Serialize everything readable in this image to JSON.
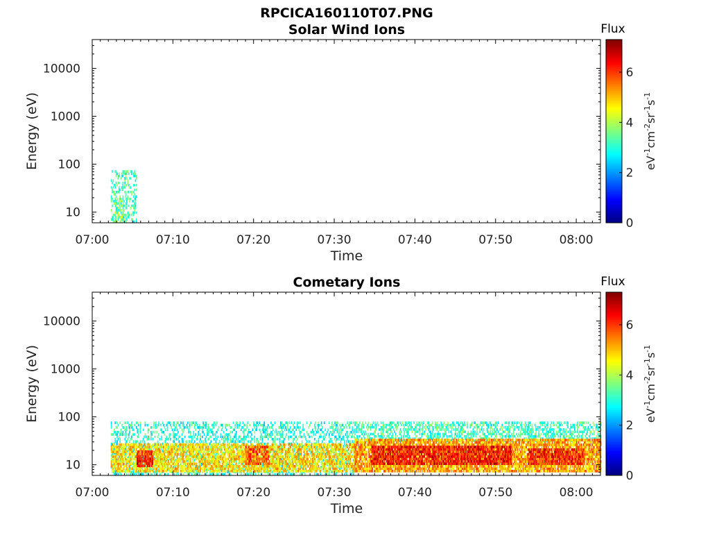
{
  "figure": {
    "title": "RPCICA160110T07.PNG"
  },
  "colormap": {
    "name": "jet",
    "stops": [
      "#00007f",
      "#0000ff",
      "#007fff",
      "#00ffff",
      "#7fff7f",
      "#ffff00",
      "#ff7f00",
      "#ff0000",
      "#7f0000"
    ]
  },
  "chart_data": [
    {
      "type": "heatmap",
      "title": "Solar Wind Ions",
      "xlabel": "Time",
      "ylabel": "Energy (eV)",
      "x_range_min": [
        0,
        63
      ],
      "x_start": "07:00",
      "x_ticks": [
        "07:00",
        "07:10",
        "07:20",
        "07:30",
        "07:40",
        "07:50",
        "08:00"
      ],
      "y_scale": "log",
      "y_range": [
        6,
        40000
      ],
      "y_ticks": [
        "10",
        "100",
        "1000",
        "10000"
      ],
      "colorbar": {
        "title": "Flux",
        "unit_label": "eV-1cm-2sr-1s-1",
        "range": [
          0,
          7.3
        ],
        "ticks": [
          "0",
          "2",
          "4",
          "6"
        ]
      },
      "blobs": [
        {
          "t0": 2.3,
          "t1": 5.5,
          "e_low": 6,
          "e_high": 75,
          "flux": 3.2,
          "density": 0.35
        },
        {
          "t0": 2.8,
          "t1": 4.2,
          "e_low": 6,
          "e_high": 20,
          "flux": 3.6,
          "density": 0.5
        }
      ]
    },
    {
      "type": "heatmap",
      "title": "Cometary Ions",
      "xlabel": "Time",
      "ylabel": "Energy (eV)",
      "x_range_min": [
        0,
        63
      ],
      "x_start": "07:00",
      "x_ticks": [
        "07:00",
        "07:10",
        "07:20",
        "07:30",
        "07:40",
        "07:50",
        "08:00"
      ],
      "y_scale": "log",
      "y_range": [
        6,
        40000
      ],
      "y_ticks": [
        "10",
        "100",
        "1000",
        "10000"
      ],
      "colorbar": {
        "title": "Flux",
        "unit_label": "eV-1cm-2sr-1s-1",
        "range": [
          0,
          7.3
        ],
        "ticks": [
          "0",
          "2",
          "4",
          "6"
        ]
      },
      "blobs": [
        {
          "t0": 2.3,
          "t1": 32.5,
          "e_low": 6,
          "e_high": 80,
          "flux": 3.0,
          "density": 0.35
        },
        {
          "t0": 2.3,
          "t1": 32.5,
          "e_low": 7,
          "e_high": 28,
          "flux": 4.8,
          "density": 0.7
        },
        {
          "t0": 5.5,
          "t1": 7.5,
          "e_low": 9,
          "e_high": 20,
          "flux": 6.2,
          "density": 0.8
        },
        {
          "t0": 19.0,
          "t1": 22.0,
          "e_low": 10,
          "e_high": 25,
          "flux": 5.8,
          "density": 0.7
        },
        {
          "t0": 32.5,
          "t1": 63.0,
          "e_low": 30,
          "e_high": 80,
          "flux": 3.2,
          "density": 0.45
        },
        {
          "t0": 32.5,
          "t1": 63.0,
          "e_low": 7,
          "e_high": 35,
          "flux": 5.2,
          "density": 0.85
        },
        {
          "t0": 34.5,
          "t1": 52.0,
          "e_low": 10,
          "e_high": 25,
          "flux": 6.3,
          "density": 0.8
        },
        {
          "t0": 54.0,
          "t1": 61.0,
          "e_low": 10,
          "e_high": 22,
          "flux": 6.1,
          "density": 0.8
        }
      ]
    }
  ]
}
